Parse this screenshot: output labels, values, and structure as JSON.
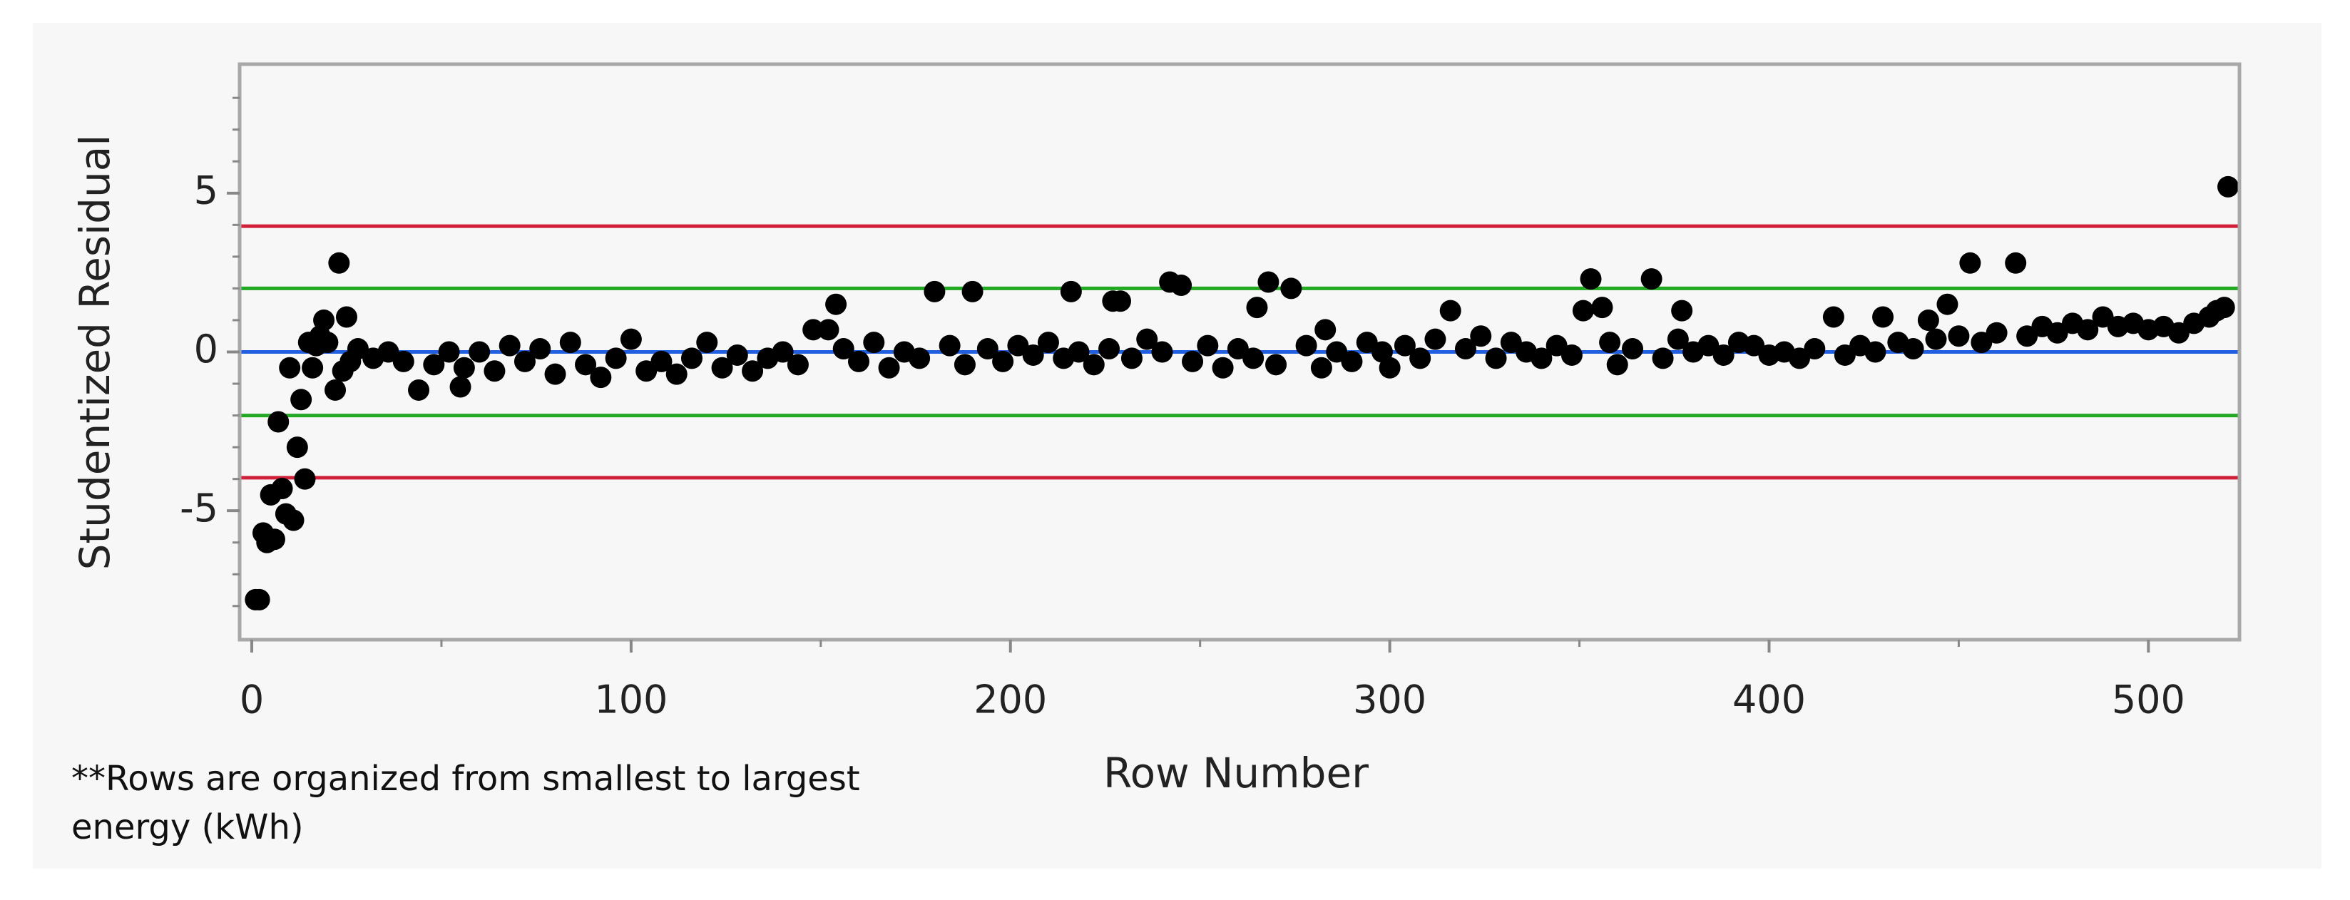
{
  "chart_data": {
    "type": "scatter",
    "x_label": "Row Number",
    "y_label": "Studentized Residual",
    "note": "**Rows are organized from smallest to largest energy (kWh)",
    "color": "#000000",
    "xlim": [
      -3.2,
      524
    ],
    "ylim": [
      -9.06,
      9.06
    ],
    "xticks": [
      0,
      100,
      200,
      300,
      400,
      500
    ],
    "yticks": [
      -5,
      0,
      5
    ],
    "xminor_ticks": [
      50,
      150,
      250,
      350,
      450
    ],
    "yminor_ticks": [
      -8,
      -7,
      -6,
      -4,
      -3,
      -2,
      -1,
      1,
      2,
      3,
      4,
      6,
      7,
      8
    ],
    "reference_lines": [
      {
        "value": 3.96,
        "color": "#d0203a"
      },
      {
        "value": 2,
        "color": "#22a822"
      },
      {
        "value": 0,
        "color": "#2060e0"
      },
      {
        "value": -2,
        "color": "#22a822"
      },
      {
        "value": -3.96,
        "color": "#d0203a"
      }
    ],
    "x": [
      1,
      2,
      3,
      4,
      5,
      6,
      7,
      8,
      9,
      10,
      11,
      12,
      13,
      14,
      15,
      16,
      17,
      18,
      19,
      20,
      22,
      23,
      24,
      25,
      26,
      28,
      32,
      36,
      40,
      44,
      48,
      52,
      55,
      56,
      60,
      64,
      68,
      72,
      76,
      80,
      84,
      88,
      92,
      96,
      100,
      104,
      108,
      112,
      116,
      120,
      124,
      128,
      132,
      136,
      140,
      144,
      148,
      152,
      154,
      156,
      160,
      164,
      168,
      172,
      176,
      180,
      184,
      188,
      190,
      194,
      198,
      202,
      206,
      210,
      214,
      216,
      218,
      222,
      226,
      227,
      229,
      232,
      236,
      240,
      242,
      245,
      248,
      252,
      256,
      260,
      264,
      265,
      268,
      270,
      274,
      278,
      282,
      283,
      286,
      290,
      294,
      298,
      300,
      304,
      308,
      312,
      316,
      320,
      324,
      328,
      332,
      336,
      340,
      344,
      348,
      351,
      353,
      356,
      358,
      360,
      364,
      369,
      372,
      376,
      377,
      380,
      384,
      388,
      392,
      396,
      400,
      404,
      408,
      412,
      417,
      420,
      424,
      428,
      430,
      434,
      438,
      442,
      444,
      447,
      450,
      453,
      456,
      460,
      465,
      468,
      472,
      476,
      480,
      484,
      488,
      492,
      496,
      500,
      504,
      508,
      512,
      516,
      518,
      520,
      521
    ],
    "values": [
      -7.8,
      -7.8,
      -5.7,
      -6.0,
      -4.5,
      -5.9,
      -2.2,
      -4.3,
      -5.1,
      -0.5,
      -5.3,
      -3.0,
      -1.5,
      -4.0,
      0.3,
      -0.5,
      0.2,
      0.5,
      1.0,
      0.3,
      -1.2,
      2.8,
      -0.6,
      1.1,
      -0.3,
      0.1,
      -0.2,
      0.0,
      -0.3,
      -1.2,
      -0.4,
      0.0,
      -1.1,
      -0.5,
      0.0,
      -0.6,
      0.2,
      -0.3,
      0.1,
      -0.7,
      0.3,
      -0.4,
      -0.8,
      -0.2,
      0.4,
      -0.6,
      -0.3,
      -0.7,
      -0.2,
      0.3,
      -0.5,
      -0.1,
      -0.6,
      -0.2,
      0.0,
      -0.4,
      0.7,
      0.7,
      1.5,
      0.1,
      -0.3,
      0.3,
      -0.5,
      0.0,
      -0.2,
      1.9,
      0.2,
      -0.4,
      1.9,
      0.1,
      -0.3,
      0.2,
      -0.1,
      0.3,
      -0.2,
      1.9,
      0.0,
      -0.4,
      0.1,
      1.6,
      1.6,
      -0.2,
      0.4,
      0.0,
      2.2,
      2.1,
      -0.3,
      0.2,
      -0.5,
      0.1,
      -0.2,
      1.4,
      2.2,
      -0.4,
      2.0,
      0.2,
      -0.5,
      0.7,
      0.0,
      -0.3,
      0.3,
      0.0,
      -0.5,
      0.2,
      -0.2,
      0.4,
      1.3,
      0.1,
      0.5,
      -0.2,
      0.3,
      0.0,
      -0.2,
      0.2,
      -0.1,
      1.3,
      2.3,
      1.4,
      0.3,
      -0.4,
      0.1,
      2.3,
      -0.2,
      0.4,
      1.3,
      0.0,
      0.2,
      -0.1,
      0.3,
      0.2,
      -0.1,
      0.0,
      -0.2,
      0.1,
      1.1,
      -0.1,
      0.2,
      0.0,
      1.1,
      0.3,
      0.1,
      1.0,
      0.4,
      1.5,
      0.5,
      2.8,
      0.3,
      0.6,
      2.8,
      0.5,
      0.8,
      0.6,
      0.9,
      0.7,
      1.1,
      0.8,
      0.9,
      0.7,
      0.8,
      0.6,
      0.9,
      1.1,
      1.3,
      1.4,
      5.2
    ]
  }
}
